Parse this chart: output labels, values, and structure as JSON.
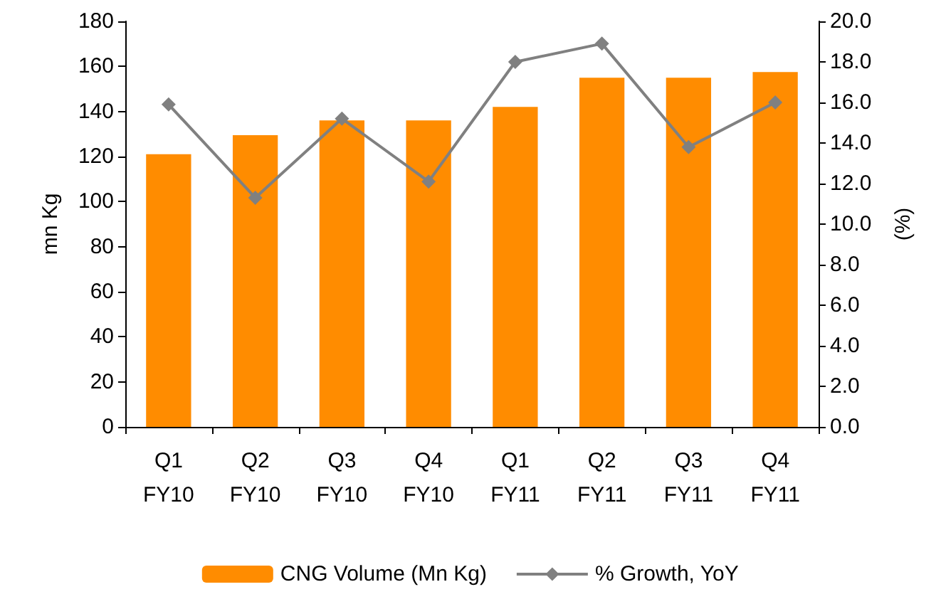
{
  "chart_data": {
    "type": "bar",
    "categories": [
      "Q1\nFY10",
      "Q2\nFY10",
      "Q3\nFY10",
      "Q4\nFY10",
      "Q1\nFY11",
      "Q2\nFY11",
      "Q3\nFY11",
      "Q4\nFY11"
    ],
    "series": [
      {
        "name": "CNG Volume (Mn Kg)",
        "color": "#ff8c00",
        "values": [
          121,
          129.5,
          136,
          136,
          142,
          155,
          155,
          157.5
        ]
      },
      {
        "name": "% Growth, YoY",
        "type": "line",
        "axis": "y2",
        "color": "#808080",
        "marker": "diamond",
        "values": [
          15.9,
          11.3,
          15.2,
          12.1,
          18.0,
          18.9,
          13.8,
          16.0
        ]
      }
    ],
    "ylabel": "mn Kg",
    "y2label": "(%)",
    "ylim": [
      0,
      180
    ],
    "yticks": [
      0,
      20,
      40,
      60,
      80,
      100,
      120,
      140,
      160,
      180
    ],
    "y2lim": [
      0,
      20
    ],
    "y2ticks": [
      {
        "value": 0,
        "label": "0.0"
      },
      {
        "value": 2,
        "label": "2.0"
      },
      {
        "value": 4,
        "label": "4.0"
      },
      {
        "value": 6,
        "label": "6.0"
      },
      {
        "value": 8,
        "label": "8.0"
      },
      {
        "value": 10,
        "label": "10.0"
      },
      {
        "value": 12,
        "label": "12.0"
      },
      {
        "value": 14,
        "label": "14.0"
      },
      {
        "value": 16,
        "label": "16.0"
      },
      {
        "value": 18,
        "label": "18.0"
      },
      {
        "value": 20,
        "label": "20.0"
      }
    ],
    "grid": false,
    "legend": "bottom"
  }
}
